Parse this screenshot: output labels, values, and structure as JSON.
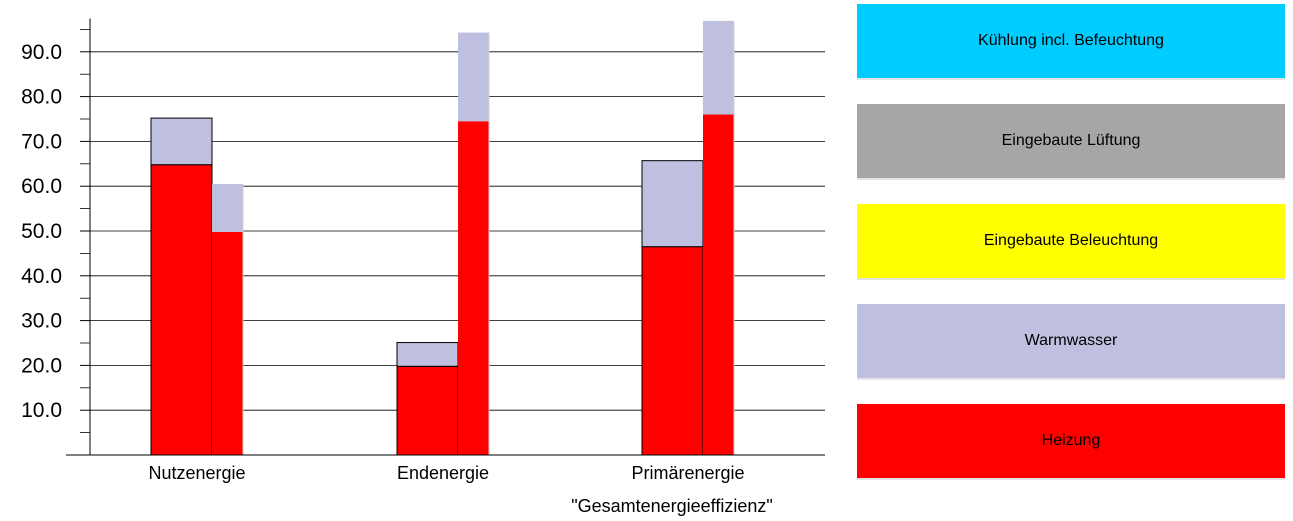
{
  "chart_data": {
    "type": "bar",
    "stacked": true,
    "categories": [
      "Nutzenergie",
      "Endenergie",
      "Primärenergie"
    ],
    "subtitle": "\"Gesamtenergieeffizienz\"",
    "ylim": [
      0,
      97
    ],
    "yticks": [
      "10.0",
      "20.0",
      "30.0",
      "40.0",
      "50.0",
      "60.0",
      "70.0",
      "80.0",
      "90.0"
    ],
    "grid": true,
    "legend_position": "right",
    "bar_groups": [
      {
        "category": "Nutzenergie",
        "bars": [
          {
            "outlined": true,
            "segments": [
              {
                "series": "Heizung",
                "value": 64.8
              },
              {
                "series": "Warmwasser",
                "value": 10.4
              }
            ]
          },
          {
            "outlined": false,
            "segments": [
              {
                "series": "Heizung",
                "value": 49.8
              },
              {
                "series": "Warmwasser",
                "value": 10.7
              }
            ]
          }
        ]
      },
      {
        "category": "Endenergie",
        "bars": [
          {
            "outlined": true,
            "segments": [
              {
                "series": "Heizung",
                "value": 19.8
              },
              {
                "series": "Warmwasser",
                "value": 5.3
              }
            ]
          },
          {
            "outlined": false,
            "segments": [
              {
                "series": "Heizung",
                "value": 74.5
              },
              {
                "series": "Warmwasser",
                "value": 19.8
              }
            ]
          }
        ]
      },
      {
        "category": "Primärenergie",
        "bars": [
          {
            "outlined": true,
            "segments": [
              {
                "series": "Heizung",
                "value": 46.5
              },
              {
                "series": "Warmwasser",
                "value": 19.2
              }
            ]
          },
          {
            "outlined": false,
            "segments": [
              {
                "series": "Heizung",
                "value": 76.0
              },
              {
                "series": "Warmwasser",
                "value": 20.9
              }
            ]
          }
        ]
      }
    ],
    "legend": [
      {
        "label": "Kühlung incl. Befeuchtung",
        "color": "#00ccff"
      },
      {
        "label": "Eingebaute Lüftung",
        "color": "#a6a6a6"
      },
      {
        "label": "Eingebaute Beleuchtung",
        "color": "#ffff00"
      },
      {
        "label": "Warmwasser",
        "color": "#bfbfdf"
      },
      {
        "label": "Heizung",
        "color": "#ff0000"
      }
    ]
  }
}
